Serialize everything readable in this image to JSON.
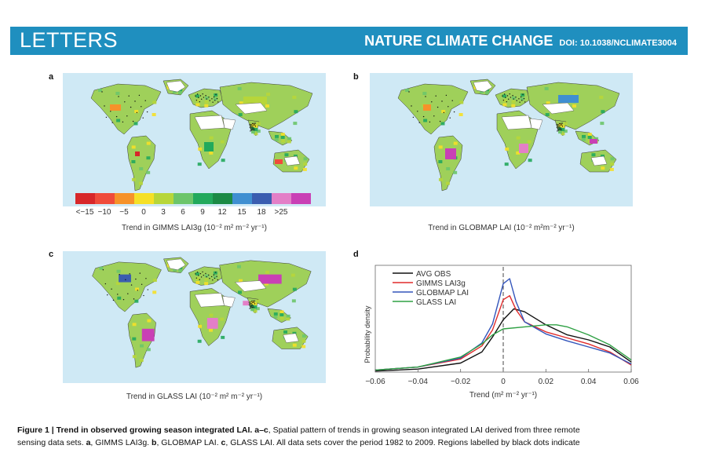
{
  "header": {
    "section": "LETTERS",
    "journal": "NATURE CLIMATE CHANGE",
    "doi": "DOI: 10.1038/NCLIMATE3004"
  },
  "panels": {
    "a": {
      "label": "a",
      "caption": "Trend in GIMMS LAI3g (10⁻² m² m⁻² yr⁻¹)"
    },
    "b": {
      "label": "b",
      "caption": "Trend in GLOBMAP LAI (10⁻² m²m⁻² yr⁻¹)"
    },
    "c": {
      "label": "c",
      "caption": "Trend in GLASS LAI (10⁻² m² m⁻² yr⁻¹)"
    },
    "d": {
      "label": "d"
    }
  },
  "colorbar": {
    "colors": [
      "#d7272a",
      "#ef4b3b",
      "#f6922a",
      "#f5e027",
      "#b7d63a",
      "#6cc56a",
      "#22a95c",
      "#1b8a45",
      "#3f8fd1",
      "#3a5db0",
      "#e37fc7",
      "#c940b5"
    ],
    "ticks": [
      "<−15",
      "−10",
      "−5",
      "0",
      "3",
      "6",
      "9",
      "12",
      "15",
      "18",
      ">25"
    ]
  },
  "chart_data": {
    "type": "line",
    "xlabel": "Trend (m² m⁻² yr⁻¹)",
    "ylabel": "Probability density",
    "xlim": [
      -0.06,
      0.06
    ],
    "xticks": [
      "−0.06",
      "−0.04",
      "−0.02",
      "0",
      "0.02",
      "0.04",
      "0.06"
    ],
    "legend_position": "top-left",
    "series": [
      {
        "name": "AVG OBS",
        "color": "#111111",
        "x": [
          -0.06,
          -0.04,
          -0.02,
          -0.01,
          -0.005,
          0,
          0.005,
          0.01,
          0.02,
          0.03,
          0.04,
          0.05,
          0.06
        ],
        "y": [
          0.01,
          0.03,
          0.09,
          0.2,
          0.35,
          0.52,
          0.63,
          0.6,
          0.47,
          0.37,
          0.32,
          0.25,
          0.1
        ]
      },
      {
        "name": "GIMMS LAI3g",
        "color": "#e02a2a",
        "x": [
          -0.06,
          -0.04,
          -0.02,
          -0.01,
          -0.005,
          0,
          0.003,
          0.006,
          0.01,
          0.02,
          0.03,
          0.04,
          0.05,
          0.06
        ],
        "y": [
          0.02,
          0.05,
          0.13,
          0.26,
          0.42,
          0.72,
          0.76,
          0.62,
          0.5,
          0.4,
          0.34,
          0.28,
          0.2,
          0.07
        ]
      },
      {
        "name": "GLOBMAP LAI",
        "color": "#3355bb",
        "x": [
          -0.06,
          -0.04,
          -0.02,
          -0.01,
          -0.005,
          0,
          0.003,
          0.006,
          0.01,
          0.02,
          0.03,
          0.04,
          0.05,
          0.06
        ],
        "y": [
          0.02,
          0.05,
          0.14,
          0.29,
          0.48,
          0.88,
          0.93,
          0.7,
          0.5,
          0.38,
          0.31,
          0.25,
          0.19,
          0.08
        ]
      },
      {
        "name": "GLASS LAI",
        "color": "#2ea043",
        "x": [
          -0.06,
          -0.04,
          -0.02,
          -0.01,
          -0.005,
          0,
          0.01,
          0.02,
          0.025,
          0.03,
          0.04,
          0.05,
          0.06
        ],
        "y": [
          0.02,
          0.05,
          0.15,
          0.28,
          0.37,
          0.43,
          0.45,
          0.47,
          0.47,
          0.45,
          0.37,
          0.27,
          0.12
        ]
      }
    ],
    "dashed_vline_x": 0
  },
  "figure_caption": {
    "line1_bold": "Figure 1 | Trend in observed growing season integrated LAI.",
    "line1_bold_ac": " a–c",
    "line1_rest": ", Spatial pattern of trends in growing season integrated LAI derived from three remote",
    "line2_a": "a",
    "line2_a_txt": ", GIMMS LAI3g. ",
    "line2_b": "b",
    "line2_b_txt": ", GLOBMAP LAI. ",
    "line2_c": "c",
    "line2_c_txt": ", GLASS LAI. All data sets cover the period 1982 to 2009. Regions labelled by black dots indicate",
    "line2_start": "sensing data sets. "
  }
}
